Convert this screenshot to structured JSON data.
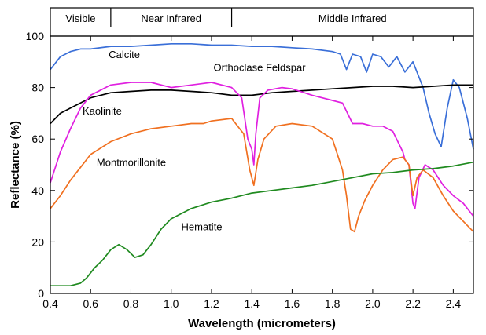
{
  "chart_data": {
    "type": "line",
    "title": "",
    "xlabel": "Wavelength (micrometers)",
    "ylabel": "Reflectance (%)",
    "xlim": [
      0.4,
      2.5
    ],
    "ylim": [
      0,
      100
    ],
    "x_ticks": [
      "0.4",
      "0.6",
      "0.8",
      "1.0",
      "1.2",
      "1.4",
      "1.6",
      "1.8",
      "2.0",
      "2.2",
      "2.4"
    ],
    "y_ticks": [
      "0",
      "20",
      "40",
      "60",
      "80",
      "100"
    ],
    "grid": false,
    "spectral_bands": [
      {
        "label": "Visible",
        "range": [
          0.4,
          0.7
        ]
      },
      {
        "label": "Near Infrared",
        "range": [
          0.7,
          1.3
        ]
      },
      {
        "label": "Middle Infrared",
        "range": [
          1.3,
          2.5
        ]
      }
    ],
    "series": [
      {
        "name": "Calcite",
        "color": "#3a6fd8",
        "x": [
          0.4,
          0.45,
          0.5,
          0.55,
          0.6,
          0.7,
          0.8,
          0.9,
          1.0,
          1.1,
          1.2,
          1.3,
          1.4,
          1.5,
          1.6,
          1.7,
          1.8,
          1.84,
          1.87,
          1.9,
          1.94,
          1.97,
          2.0,
          2.04,
          2.08,
          2.12,
          2.16,
          2.2,
          2.22,
          2.25,
          2.28,
          2.31,
          2.34,
          2.37,
          2.4,
          2.43,
          2.47,
          2.5
        ],
        "y": [
          87,
          92,
          94,
          95,
          95,
          96,
          96,
          96.5,
          97,
          97,
          96.5,
          96.5,
          96,
          96,
          95.5,
          95,
          94,
          93,
          87,
          93,
          92,
          86,
          93,
          92,
          88,
          92,
          86,
          90,
          86,
          80,
          70,
          62,
          57,
          72,
          83,
          80,
          68,
          56
        ]
      },
      {
        "name": "Orthoclase Feldspar",
        "color": "#000000",
        "x": [
          0.4,
          0.45,
          0.5,
          0.55,
          0.6,
          0.65,
          0.7,
          0.8,
          0.9,
          1.0,
          1.1,
          1.2,
          1.3,
          1.4,
          1.5,
          1.6,
          1.7,
          1.8,
          1.9,
          2.0,
          2.1,
          2.2,
          2.3,
          2.4,
          2.5
        ],
        "y": [
          66,
          70,
          72,
          74,
          76,
          77,
          78,
          78.5,
          79,
          79,
          78.5,
          78,
          77,
          77,
          78,
          78.5,
          79,
          79.5,
          80,
          80.5,
          80.5,
          80,
          80.5,
          81,
          81
        ]
      },
      {
        "name": "Kaolinite",
        "color": "#e020e0",
        "x": [
          0.4,
          0.45,
          0.5,
          0.55,
          0.6,
          0.7,
          0.8,
          0.9,
          1.0,
          1.1,
          1.2,
          1.3,
          1.35,
          1.38,
          1.4,
          1.41,
          1.42,
          1.44,
          1.48,
          1.55,
          1.6,
          1.7,
          1.8,
          1.85,
          1.9,
          1.95,
          2.0,
          2.05,
          2.1,
          2.15,
          2.16,
          2.18,
          2.2,
          2.21,
          2.23,
          2.26,
          2.3,
          2.35,
          2.4,
          2.45,
          2.5
        ],
        "y": [
          43,
          55,
          64,
          72,
          77,
          81,
          82,
          82,
          80,
          81,
          82,
          80,
          76,
          60,
          56,
          50,
          62,
          76,
          79,
          80,
          79.5,
          77,
          75,
          74,
          66,
          66,
          65,
          65,
          63,
          55,
          52,
          50,
          35,
          33,
          45,
          50,
          48,
          42,
          38,
          35,
          30
        ]
      },
      {
        "name": "Montmorillonite",
        "color": "#f07020",
        "x": [
          0.4,
          0.45,
          0.5,
          0.55,
          0.6,
          0.7,
          0.8,
          0.9,
          1.0,
          1.1,
          1.16,
          1.2,
          1.3,
          1.36,
          1.39,
          1.41,
          1.43,
          1.46,
          1.52,
          1.6,
          1.7,
          1.8,
          1.85,
          1.87,
          1.89,
          1.91,
          1.93,
          1.96,
          2.0,
          2.05,
          2.1,
          2.15,
          2.18,
          2.2,
          2.22,
          2.25,
          2.3,
          2.35,
          2.4,
          2.45,
          2.5
        ],
        "y": [
          33,
          38,
          44,
          49,
          54,
          59,
          62,
          64,
          65,
          66,
          66,
          67,
          68,
          62,
          48,
          42,
          52,
          60,
          65,
          66,
          65,
          60,
          48,
          38,
          25,
          24,
          30,
          36,
          42,
          48,
          52,
          53,
          50,
          38,
          45,
          48,
          45,
          38,
          32,
          28,
          24
        ]
      },
      {
        "name": "Hematite",
        "color": "#1f8a1f",
        "x": [
          0.4,
          0.45,
          0.5,
          0.55,
          0.58,
          0.62,
          0.66,
          0.7,
          0.74,
          0.78,
          0.82,
          0.86,
          0.9,
          0.95,
          1.0,
          1.1,
          1.2,
          1.3,
          1.4,
          1.5,
          1.6,
          1.7,
          1.8,
          1.9,
          2.0,
          2.1,
          2.2,
          2.3,
          2.4,
          2.5
        ],
        "y": [
          3,
          3,
          3,
          4,
          6,
          10,
          13,
          17,
          19,
          17,
          14,
          15,
          19,
          25,
          29,
          33,
          35.5,
          37,
          39,
          40,
          41,
          42,
          43.5,
          45,
          46.5,
          47,
          48,
          48.5,
          49.5,
          51
        ]
      }
    ],
    "annotations": [
      {
        "text": "Calcite",
        "x": 0.69,
        "y": 91.5
      },
      {
        "text": "Orthoclase Feldspar",
        "x": 1.21,
        "y": 86.5
      },
      {
        "text": "Kaolinite",
        "x": 0.56,
        "y": 69.5
      },
      {
        "text": "Montmorillonite",
        "x": 0.63,
        "y": 49.5
      },
      {
        "text": "Hematite",
        "x": 1.05,
        "y": 24.5
      }
    ]
  }
}
